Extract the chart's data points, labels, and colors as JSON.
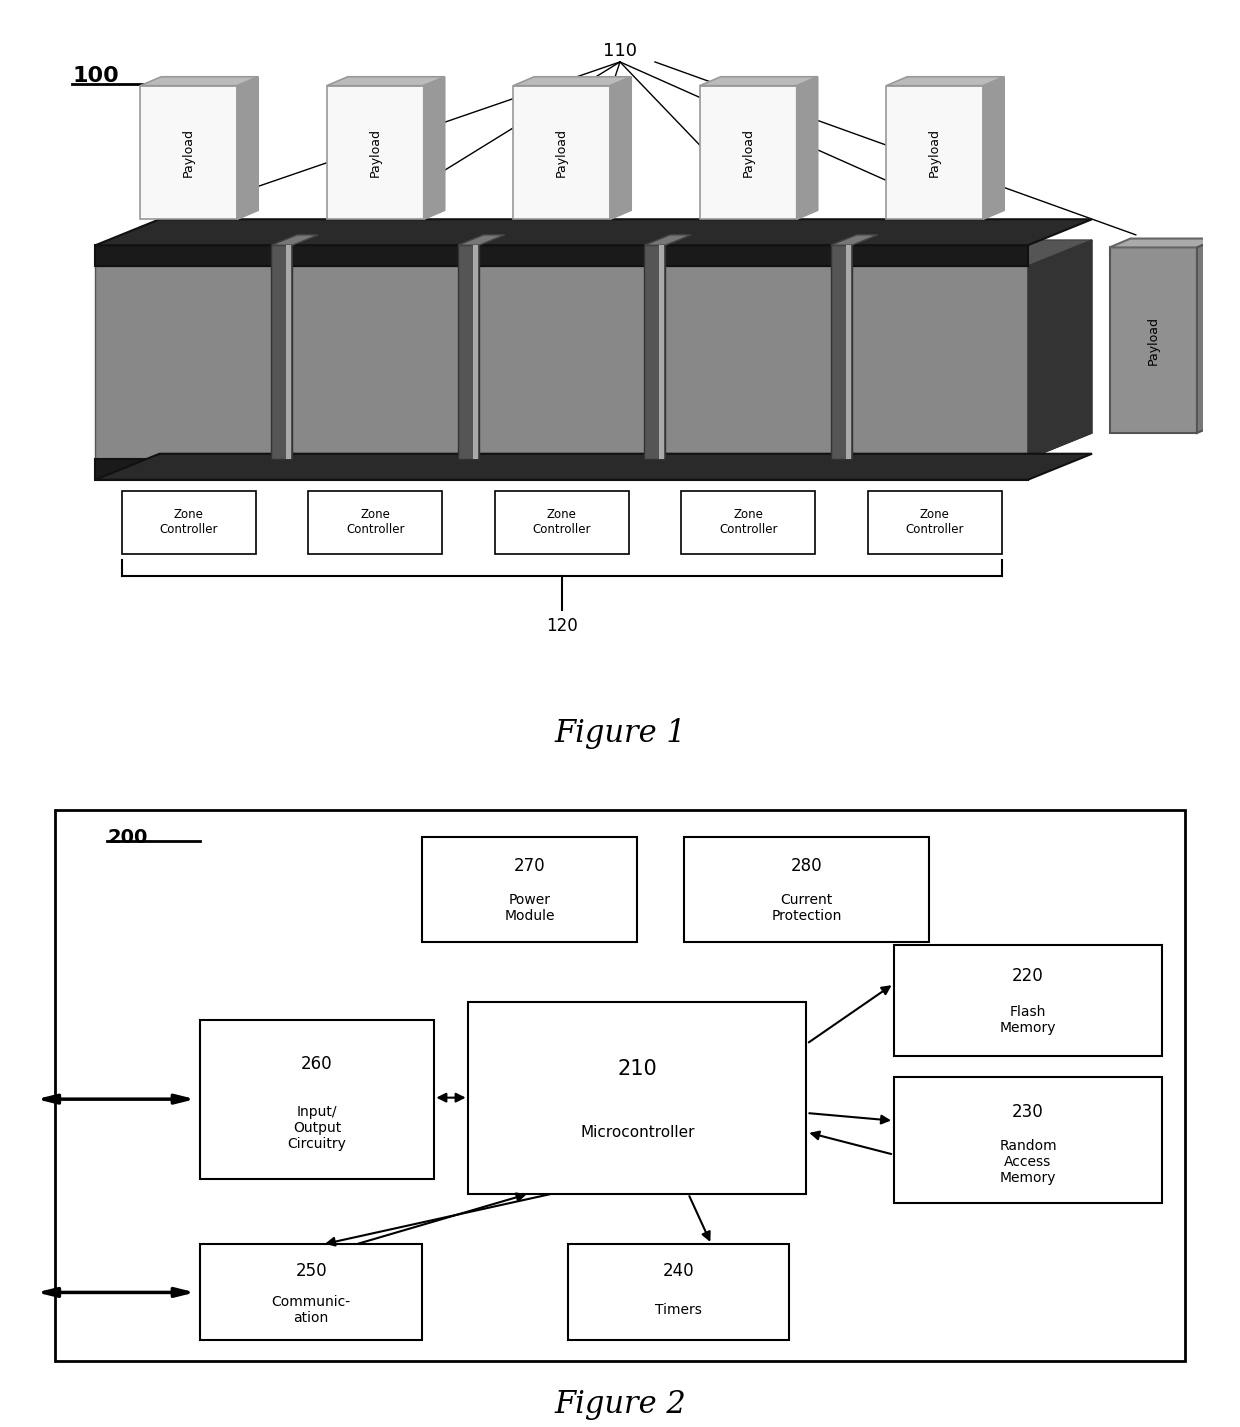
{
  "fig1": {
    "title": "Figure 1",
    "label_100": "100",
    "label_110": "110",
    "label_120": "120",
    "num_zones": 5
  },
  "fig2": {
    "title": "Figure 2",
    "label_200": "200"
  },
  "colors": {
    "conveyor_body": "#888888",
    "conveyor_dark": "#555555",
    "conveyor_darker": "#333333",
    "belt_black": "#1a1a1a",
    "pillar_dark": "#444444",
    "pillar_light": "#999999",
    "payload_white": "#f8f8f8",
    "payload_gray_top": "#bbbbbb",
    "payload_gray_side": "#999999",
    "extra_payload_front": "#888888",
    "extra_payload_top": "#aaaaaa",
    "bottom_face": "#666666",
    "white": "#ffffff",
    "black": "#000000"
  }
}
